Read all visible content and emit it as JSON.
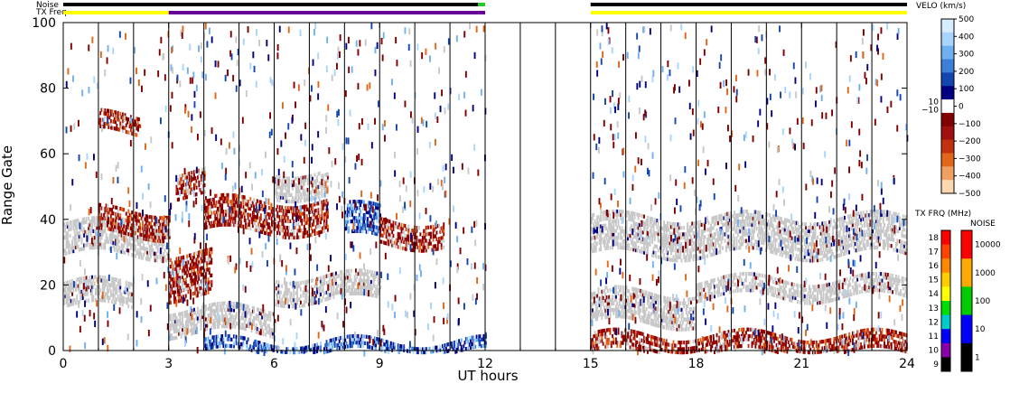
{
  "chart_data": {
    "type": "heatmap",
    "xlabel": "UT hours",
    "ylabel": "Range Gate",
    "xlim": [
      0,
      24
    ],
    "ylim": [
      0,
      100
    ],
    "xticks": [
      "0",
      "3",
      "6",
      "9",
      "12",
      "15",
      "18",
      "21",
      "24"
    ],
    "yticks": [
      "0",
      "20",
      "40",
      "60",
      "80",
      "100"
    ],
    "scan_boundaries_ut": [
      1,
      2,
      3,
      4,
      5,
      6,
      7,
      8,
      9,
      10,
      11,
      12,
      13,
      14,
      15,
      16,
      17,
      18,
      19,
      20,
      21,
      22,
      23,
      24
    ],
    "data_gap_ut": [
      12,
      15
    ],
    "status_bars": {
      "noise_label": "Noise",
      "txfreq_label": "TX Freq",
      "noise_segments": [
        {
          "start": 0,
          "end": 11.8,
          "color": "#000000"
        },
        {
          "start": 11.8,
          "end": 12.0,
          "color": "#22cc22"
        },
        {
          "start": 15.0,
          "end": 24.0,
          "color": "#000000"
        }
      ],
      "txfreq_segments": [
        {
          "start": 0,
          "end": 3.0,
          "color": "#ffff00"
        },
        {
          "start": 3.0,
          "end": 11.8,
          "color": "#660099"
        },
        {
          "start": 11.8,
          "end": 12.0,
          "color": "#660099"
        },
        {
          "start": 15.0,
          "end": 24.0,
          "color": "#ffff00"
        }
      ]
    },
    "velocity_colorbar": {
      "title": "VELO (km/s)",
      "labels": [
        "500",
        "400",
        "300",
        "200",
        "100",
        "0",
        "−100",
        "−200",
        "−300",
        "−400",
        "−500"
      ],
      "inner_labels": [
        "10",
        "−10"
      ],
      "colors": [
        "#d6ecff",
        "#a8d4ff",
        "#6fb0f0",
        "#3b7fd9",
        "#1446b0",
        "#000080",
        "#ffffff",
        "#800000",
        "#a01010",
        "#c33010",
        "#e0661a",
        "#f0a060",
        "#fbd8b0"
      ]
    },
    "txfreq_colorbar": {
      "title": "TX FRQ (MHz)",
      "labels": [
        "18",
        "17",
        "16",
        "15",
        "14",
        "13",
        "12",
        "11",
        "10",
        "9"
      ],
      "colors": [
        "#ff0000",
        "#ff4400",
        "#ff8800",
        "#ffcc00",
        "#ffff00",
        "#00dd00",
        "#00cccc",
        "#0000ff",
        "#8800aa",
        "#000000"
      ]
    },
    "noise_colorbar": {
      "title": "NOISE",
      "labels": [
        "10000",
        "1000",
        "100",
        "10",
        "1"
      ],
      "colors": [
        "#ff0000",
        "#ffaa00",
        "#00cc00",
        "#0000ff",
        "#000000"
      ]
    },
    "echo_bands": [
      {
        "start_ut": 0.0,
        "end_ut": 3.0,
        "gate_center": 35,
        "gate_width": 10,
        "kind": "ground_scatter"
      },
      {
        "start_ut": 0.0,
        "end_ut": 2.0,
        "gate_center": 18,
        "gate_width": 8,
        "kind": "ground_scatter"
      },
      {
        "start_ut": 1.0,
        "end_ut": 3.0,
        "gate_center": 40,
        "gate_width": 8,
        "kind": "negative_velocity"
      },
      {
        "start_ut": 1.0,
        "end_ut": 2.2,
        "gate_center": 70,
        "gate_width": 6,
        "kind": "negative_velocity"
      },
      {
        "start_ut": 3.0,
        "end_ut": 6.0,
        "gate_center": 10,
        "gate_width": 8,
        "kind": "ground_scatter"
      },
      {
        "start_ut": 3.0,
        "end_ut": 4.2,
        "gate_center": 24,
        "gate_width": 14,
        "kind": "negative_velocity"
      },
      {
        "start_ut": 3.2,
        "end_ut": 4.0,
        "gate_center": 52,
        "gate_width": 8,
        "kind": "negative_velocity"
      },
      {
        "start_ut": 4.0,
        "end_ut": 7.5,
        "gate_center": 42,
        "gate_width": 10,
        "kind": "negative_velocity"
      },
      {
        "start_ut": 6.0,
        "end_ut": 7.5,
        "gate_center": 52,
        "gate_width": 8,
        "kind": "ground_scatter"
      },
      {
        "start_ut": 6.0,
        "end_ut": 9.0,
        "gate_center": 20,
        "gate_width": 8,
        "kind": "ground_scatter"
      },
      {
        "start_ut": 4.0,
        "end_ut": 12.0,
        "gate_center": 2,
        "gate_width": 4,
        "kind": "positive_velocity"
      },
      {
        "start_ut": 8.0,
        "end_ut": 9.0,
        "gate_center": 40,
        "gate_width": 10,
        "kind": "positive_velocity"
      },
      {
        "start_ut": 9.0,
        "end_ut": 10.8,
        "gate_center": 37,
        "gate_width": 8,
        "kind": "negative_velocity"
      },
      {
        "start_ut": 15.0,
        "end_ut": 24.0,
        "gate_center": 36,
        "gate_width": 12,
        "kind": "ground_scatter"
      },
      {
        "start_ut": 15.0,
        "end_ut": 18.0,
        "gate_center": 14,
        "gate_width": 10,
        "kind": "ground_scatter"
      },
      {
        "start_ut": 15.0,
        "end_ut": 24.0,
        "gate_center": 3,
        "gate_width": 6,
        "kind": "negative_velocity"
      },
      {
        "start_ut": 18.0,
        "end_ut": 24.0,
        "gate_center": 20,
        "gate_width": 6,
        "kind": "ground_scatter"
      }
    ]
  }
}
